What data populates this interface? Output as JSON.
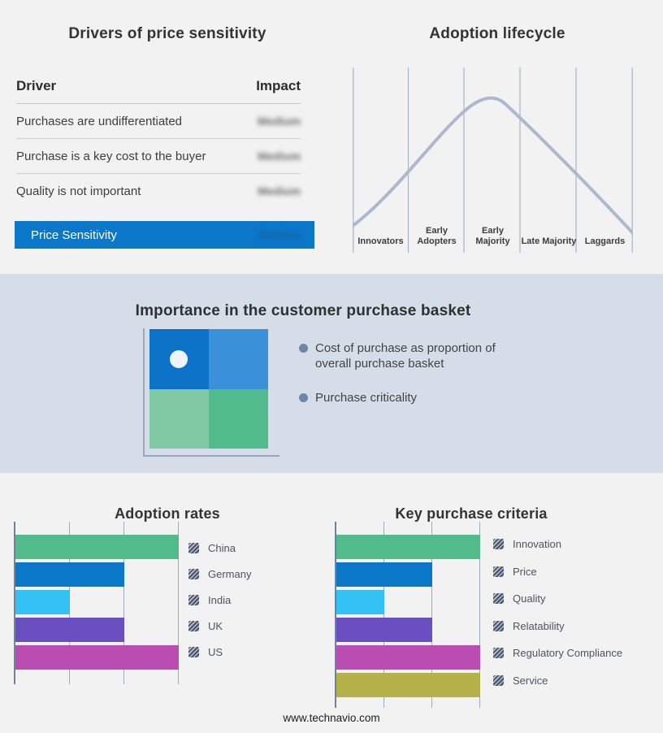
{
  "page": {
    "background": "#f2f2f3",
    "band_background": "#d5dde8",
    "accent_blue": "#0b77c9"
  },
  "drivers": {
    "title": "Drivers of price sensitivity",
    "columns": {
      "driver": "Driver",
      "impact": "Impact"
    },
    "rows": [
      {
        "driver": "Purchases are undifferentiated",
        "impact": "Medium",
        "redacted": true
      },
      {
        "driver": "Purchase is a key cost to the buyer",
        "impact": "Medium",
        "redacted": true
      },
      {
        "driver": "Quality is not important",
        "impact": "Medium",
        "redacted": true
      }
    ],
    "highlight": {
      "label": "Price Sensitivity",
      "impact": "Medium",
      "redacted": true,
      "color": "#0b77c9"
    }
  },
  "basket": {
    "title": "Importance in the customer purchase basket",
    "bullets": [
      "Cost of purchase as proportion of overall purchase basket",
      "Purchase criticality"
    ],
    "quadrant_colors": {
      "top_left": "#0b72c8",
      "top_right": "#3a90d9",
      "bottom_left": "#80c7a4",
      "bottom_right": "#52bb8b"
    },
    "bullet_color": "#6e86a6"
  },
  "chart_data": [
    {
      "type": "line",
      "title": "Adoption lifecycle",
      "categories": [
        "Innovators",
        "Early Adopters",
        "Early Majority",
        "Late Majority",
        "Laggards"
      ],
      "values": [
        0.28,
        0.62,
        0.97,
        0.68,
        0.27
      ],
      "ylim": [
        0,
        1
      ],
      "curve_color": "#aab9ce",
      "grid": true,
      "note": "qualitative bell curve over adopter stages; no numeric axes shown"
    },
    {
      "type": "bar",
      "orientation": "horizontal",
      "title": "Adoption rates",
      "categories": [
        "China",
        "Germany",
        "India",
        "UK",
        "US"
      ],
      "values": [
        3,
        2,
        1,
        2,
        3
      ],
      "xlim": [
        0,
        3
      ],
      "colors": [
        "#51bb8b",
        "#0b77c9",
        "#33c0f3",
        "#6a4fc0",
        "#bb4db2"
      ],
      "grid": true,
      "legend_position": "right",
      "note": "no numeric tick labels shown; values measured in gridline units"
    },
    {
      "type": "bar",
      "orientation": "horizontal",
      "title": "Key purchase criteria",
      "categories": [
        "Innovation",
        "Price",
        "Quality",
        "Relatability",
        "Regulatory Compliance",
        "Service"
      ],
      "values": [
        3,
        2,
        1,
        2,
        3,
        3
      ],
      "xlim": [
        0,
        3
      ],
      "colors": [
        "#51bb8b",
        "#0b77c9",
        "#33c0f3",
        "#6a4fc0",
        "#bb4db2",
        "#b4b148"
      ],
      "grid": true,
      "legend_position": "right",
      "note": "no numeric tick labels shown; values measured in gridline units"
    }
  ],
  "footer": {
    "url": "www.technavio.com"
  }
}
